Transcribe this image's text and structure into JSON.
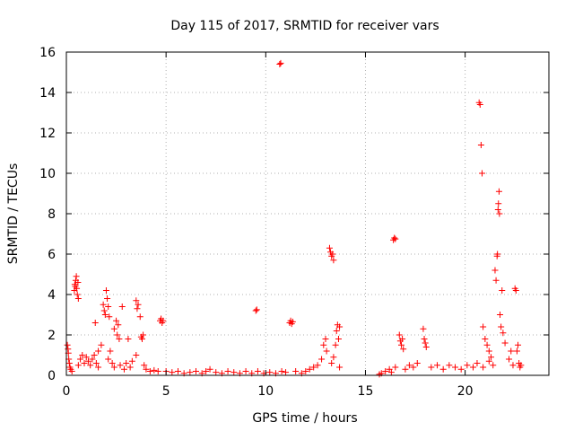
{
  "chart_data": {
    "type": "scatter",
    "title": "Day 115 of 2017, SRMTID for receiver vars",
    "xlabel": "GPS time / hours",
    "ylabel": "SRMTID / TECUs",
    "xlim": [
      0,
      24.2
    ],
    "ylim": [
      0,
      16
    ],
    "xticks": [
      0,
      5,
      10,
      15,
      20
    ],
    "yticks": [
      0,
      2,
      4,
      6,
      8,
      10,
      12,
      14,
      16
    ],
    "grid": true,
    "marker": "+",
    "marker_color": "#ff0000",
    "series": [
      {
        "name": "SRMTID",
        "points": [
          [
            0.05,
            1.5
          ],
          [
            0.08,
            1.3
          ],
          [
            0.1,
            1.1
          ],
          [
            0.12,
            0.8
          ],
          [
            0.15,
            0.6
          ],
          [
            0.18,
            0.4
          ],
          [
            0.22,
            0.3
          ],
          [
            0.28,
            0.2
          ],
          [
            0.4,
            4.2
          ],
          [
            0.42,
            4.5
          ],
          [
            0.45,
            4.4
          ],
          [
            0.47,
            4.7
          ],
          [
            0.5,
            4.9
          ],
          [
            0.52,
            4.3
          ],
          [
            0.55,
            4.0
          ],
          [
            0.58,
            4.6
          ],
          [
            0.6,
            3.8
          ],
          [
            0.6,
            0.5
          ],
          [
            0.7,
            0.8
          ],
          [
            0.8,
            1.0
          ],
          [
            0.9,
            0.6
          ],
          [
            1.0,
            0.9
          ],
          [
            1.1,
            0.7
          ],
          [
            1.2,
            0.5
          ],
          [
            1.3,
            0.8
          ],
          [
            1.4,
            1.0
          ],
          [
            1.5,
            0.6
          ],
          [
            1.6,
            0.4
          ],
          [
            1.45,
            2.6
          ],
          [
            1.6,
            1.2
          ],
          [
            1.75,
            1.5
          ],
          [
            1.85,
            3.5
          ],
          [
            1.9,
            3.2
          ],
          [
            1.95,
            3.0
          ],
          [
            2.0,
            4.2
          ],
          [
            2.05,
            3.8
          ],
          [
            2.1,
            3.4
          ],
          [
            2.15,
            2.9
          ],
          [
            2.1,
            0.8
          ],
          [
            2.2,
            1.2
          ],
          [
            2.3,
            0.6
          ],
          [
            2.4,
            0.4
          ],
          [
            2.4,
            2.3
          ],
          [
            2.5,
            2.7
          ],
          [
            2.55,
            2.0
          ],
          [
            2.6,
            2.5
          ],
          [
            2.65,
            1.8
          ],
          [
            2.8,
            3.4
          ],
          [
            2.7,
            0.5
          ],
          [
            2.9,
            0.3
          ],
          [
            3.0,
            0.6
          ],
          [
            3.1,
            1.8
          ],
          [
            3.2,
            0.4
          ],
          [
            3.3,
            0.7
          ],
          [
            3.5,
            3.7
          ],
          [
            3.55,
            3.3
          ],
          [
            3.6,
            3.5
          ],
          [
            3.7,
            2.9
          ],
          [
            3.75,
            1.9
          ],
          [
            3.8,
            1.8
          ],
          [
            3.85,
            2.0
          ],
          [
            3.5,
            1.0
          ],
          [
            3.9,
            0.5
          ],
          [
            4.0,
            0.3
          ],
          [
            4.2,
            0.2
          ],
          [
            4.4,
            0.25
          ],
          [
            4.6,
            0.2
          ],
          [
            4.7,
            2.7
          ],
          [
            4.75,
            2.8
          ],
          [
            4.8,
            2.6
          ],
          [
            4.85,
            2.7
          ],
          [
            5.0,
            0.2
          ],
          [
            5.3,
            0.15
          ],
          [
            5.6,
            0.2
          ],
          [
            5.9,
            0.1
          ],
          [
            6.2,
            0.15
          ],
          [
            6.5,
            0.2
          ],
          [
            6.8,
            0.1
          ],
          [
            7.0,
            0.2
          ],
          [
            7.2,
            0.3
          ],
          [
            7.5,
            0.15
          ],
          [
            7.8,
            0.1
          ],
          [
            8.1,
            0.2
          ],
          [
            8.4,
            0.15
          ],
          [
            8.7,
            0.1
          ],
          [
            9.0,
            0.2
          ],
          [
            9.3,
            0.1
          ],
          [
            9.5,
            3.2
          ],
          [
            9.55,
            3.25
          ],
          [
            9.6,
            0.2
          ],
          [
            9.9,
            0.1
          ],
          [
            10.2,
            0.15
          ],
          [
            10.5,
            0.1
          ],
          [
            10.7,
            15.4
          ],
          [
            10.75,
            15.45
          ],
          [
            10.8,
            0.2
          ],
          [
            11.0,
            0.15
          ],
          [
            11.2,
            2.6
          ],
          [
            11.25,
            2.7
          ],
          [
            11.3,
            2.55
          ],
          [
            11.35,
            2.65
          ],
          [
            11.5,
            0.2
          ],
          [
            11.8,
            0.1
          ],
          [
            12.0,
            0.2
          ],
          [
            12.2,
            0.3
          ],
          [
            12.4,
            0.4
          ],
          [
            12.6,
            0.5
          ],
          [
            12.8,
            0.8
          ],
          [
            12.9,
            1.5
          ],
          [
            13.0,
            1.8
          ],
          [
            13.05,
            1.2
          ],
          [
            13.2,
            6.3
          ],
          [
            13.25,
            6.1
          ],
          [
            13.3,
            5.9
          ],
          [
            13.35,
            6.0
          ],
          [
            13.4,
            5.7
          ],
          [
            13.3,
            0.6
          ],
          [
            13.4,
            0.9
          ],
          [
            13.5,
            1.5
          ],
          [
            13.55,
            2.2
          ],
          [
            13.6,
            2.5
          ],
          [
            13.65,
            1.8
          ],
          [
            13.7,
            2.4
          ],
          [
            13.7,
            0.4
          ],
          [
            15.7,
            0.05
          ],
          [
            15.8,
            0.1
          ],
          [
            16.0,
            0.2
          ],
          [
            16.2,
            0.3
          ],
          [
            16.3,
            0.15
          ],
          [
            16.5,
            0.4
          ],
          [
            16.4,
            6.7
          ],
          [
            16.45,
            6.8
          ],
          [
            16.5,
            6.75
          ],
          [
            16.7,
            2.0
          ],
          [
            16.75,
            1.7
          ],
          [
            16.8,
            1.5
          ],
          [
            16.85,
            1.8
          ],
          [
            16.9,
            1.3
          ],
          [
            17.0,
            0.3
          ],
          [
            17.2,
            0.5
          ],
          [
            17.4,
            0.4
          ],
          [
            17.6,
            0.6
          ],
          [
            17.9,
            2.3
          ],
          [
            17.95,
            1.8
          ],
          [
            18.0,
            1.6
          ],
          [
            18.05,
            1.4
          ],
          [
            18.3,
            0.4
          ],
          [
            18.6,
            0.5
          ],
          [
            18.9,
            0.3
          ],
          [
            19.2,
            0.5
          ],
          [
            19.5,
            0.4
          ],
          [
            19.8,
            0.3
          ],
          [
            20.1,
            0.5
          ],
          [
            20.4,
            0.4
          ],
          [
            20.7,
            13.5
          ],
          [
            20.75,
            13.4
          ],
          [
            20.8,
            11.4
          ],
          [
            20.85,
            10.0
          ],
          [
            20.9,
            2.4
          ],
          [
            21.0,
            1.8
          ],
          [
            21.1,
            1.5
          ],
          [
            21.2,
            1.2
          ],
          [
            21.3,
            0.9
          ],
          [
            20.6,
            0.6
          ],
          [
            20.9,
            0.4
          ],
          [
            21.2,
            0.7
          ],
          [
            21.4,
            0.5
          ],
          [
            21.5,
            5.2
          ],
          [
            21.55,
            4.7
          ],
          [
            21.6,
            5.9
          ],
          [
            21.62,
            6.0
          ],
          [
            21.65,
            8.2
          ],
          [
            21.67,
            8.5
          ],
          [
            21.7,
            9.1
          ],
          [
            21.72,
            8.0
          ],
          [
            21.75,
            3.0
          ],
          [
            21.8,
            2.4
          ],
          [
            21.85,
            4.2
          ],
          [
            21.9,
            2.1
          ],
          [
            22.0,
            1.6
          ],
          [
            22.2,
            0.8
          ],
          [
            22.3,
            1.2
          ],
          [
            22.4,
            0.5
          ],
          [
            22.5,
            4.3
          ],
          [
            22.55,
            4.2
          ],
          [
            22.6,
            1.2
          ],
          [
            22.65,
            1.5
          ],
          [
            22.7,
            0.6
          ],
          [
            22.75,
            0.4
          ],
          [
            22.8,
            0.5
          ]
        ]
      }
    ]
  }
}
